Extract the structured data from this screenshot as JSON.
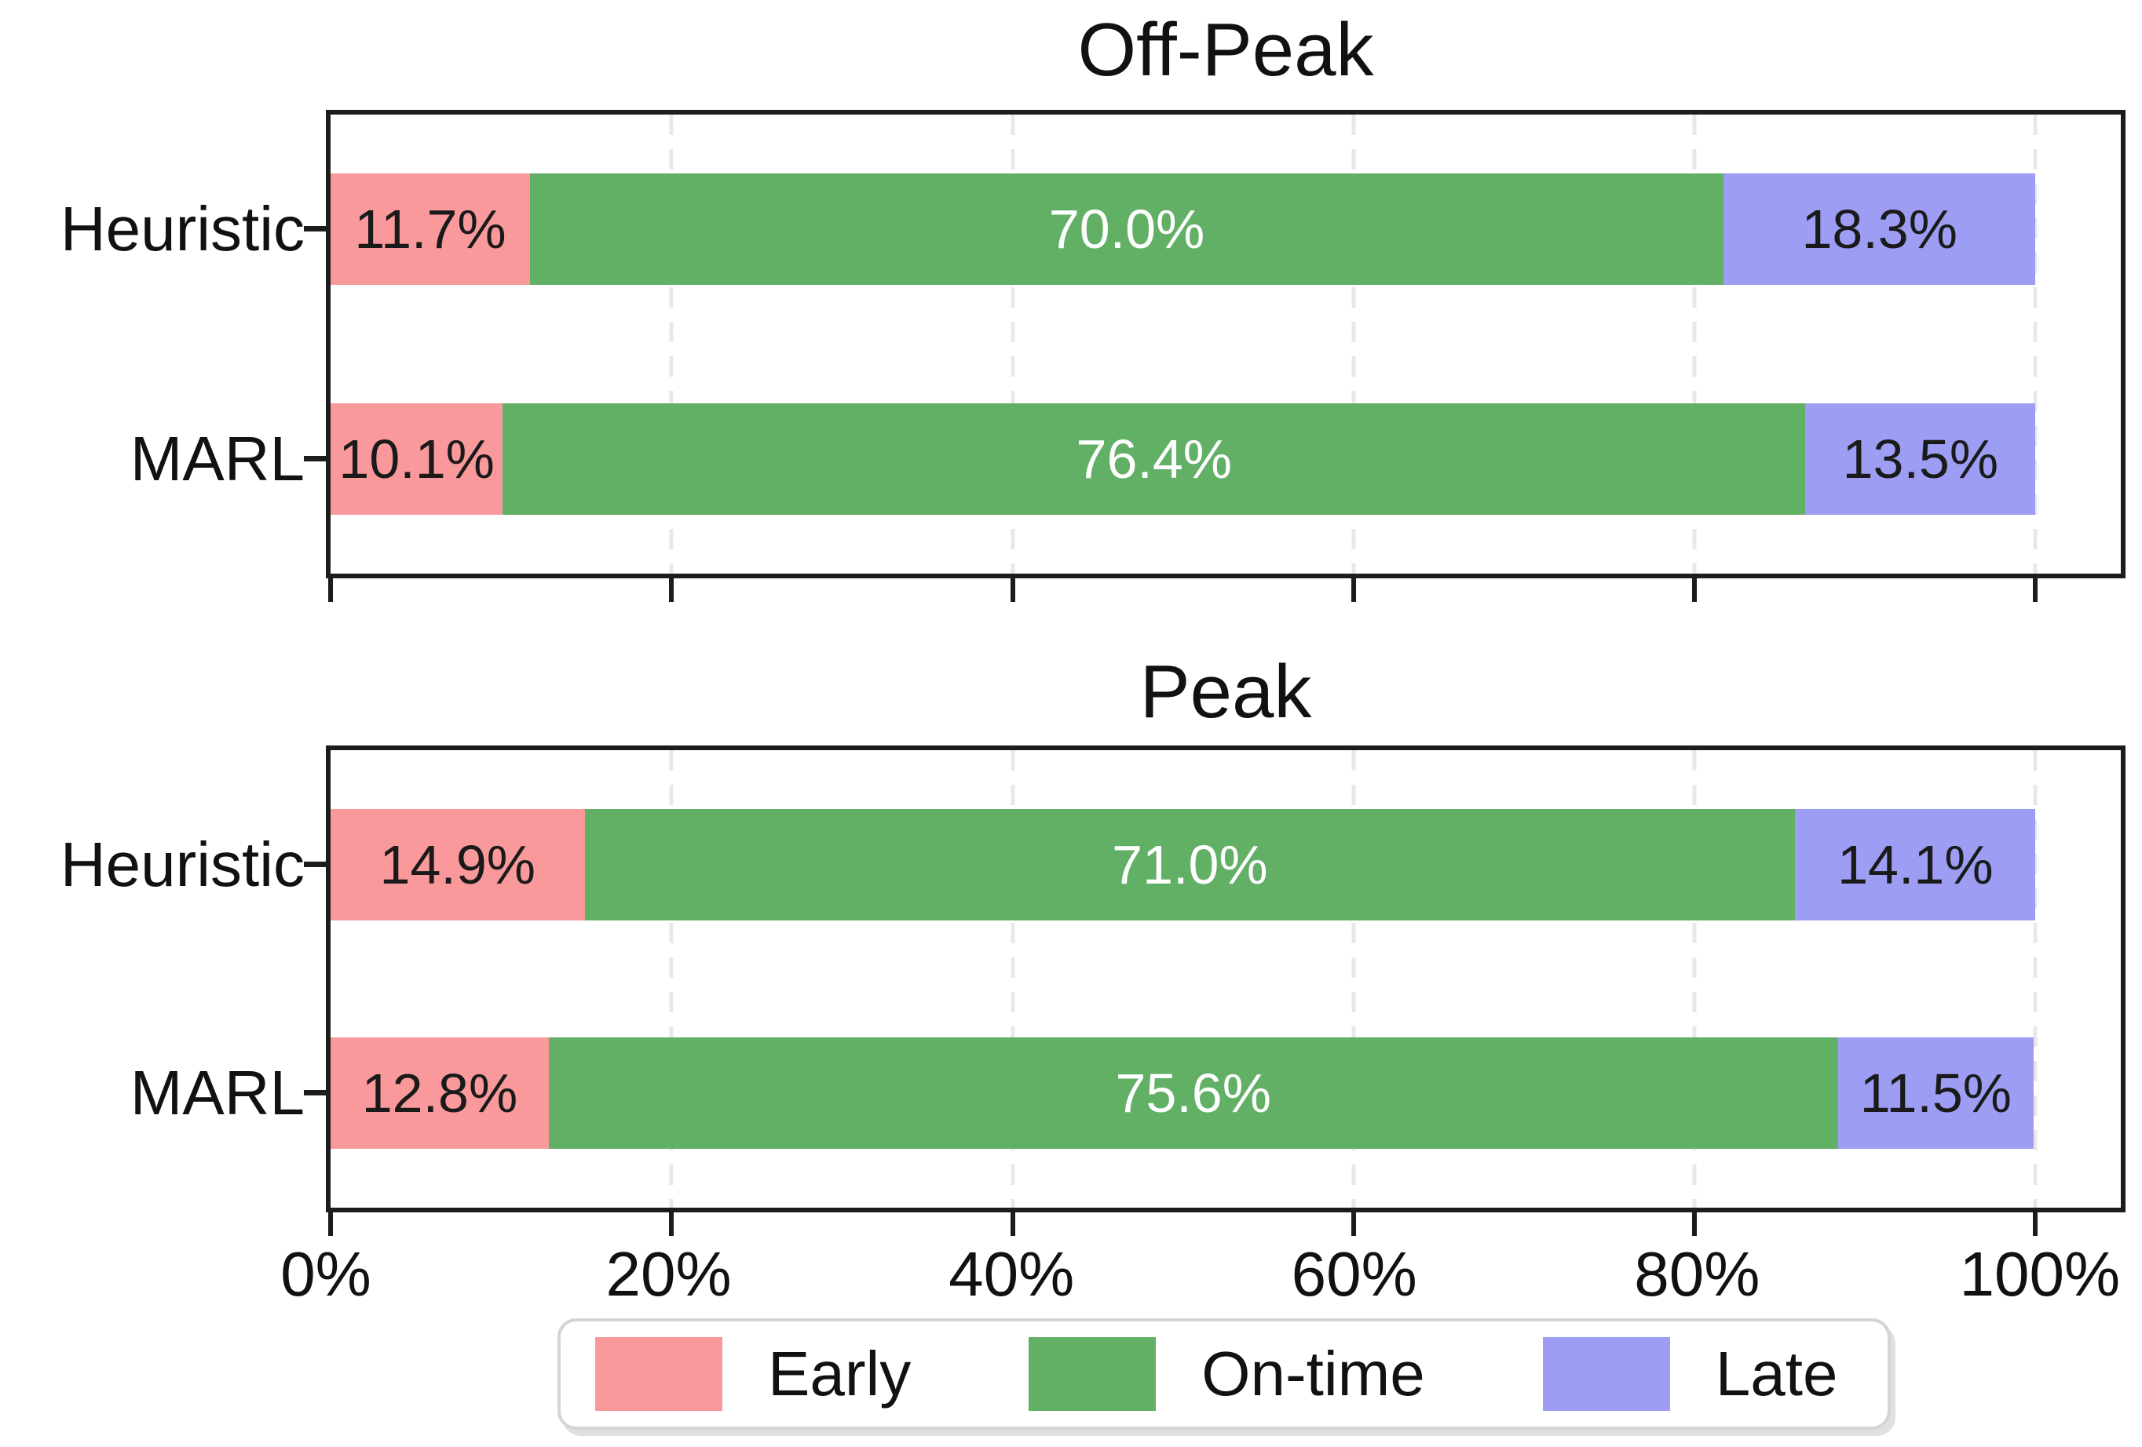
{
  "figure": {
    "background": "#ffffff",
    "spine_color": "#1c1c1c",
    "grid_color": "#e8e8e8"
  },
  "chart_data": [
    {
      "type": "bar",
      "orientation": "horizontal",
      "stacked": true,
      "title": "Off-Peak",
      "categories": [
        "Heuristic",
        "MARL"
      ],
      "series": [
        {
          "name": "Early",
          "color": "#F9999B",
          "label_color": "#1a1a1a",
          "values": [
            11.7,
            10.1
          ],
          "labels": [
            "11.7%",
            "10.1%"
          ]
        },
        {
          "name": "On-time",
          "color": "#62B066",
          "label_color": "#ffffff",
          "values": [
            70.0,
            76.4
          ],
          "labels": [
            "70.0%",
            "76.4%"
          ]
        },
        {
          "name": "Late",
          "color": "#9D9DF3",
          "label_color": "#1a1a1a",
          "values": [
            18.3,
            13.5
          ],
          "labels": [
            "18.3%",
            "13.5%"
          ]
        }
      ],
      "xlim": [
        0,
        105
      ],
      "grid": true,
      "gridline_positions": [
        20,
        40,
        60,
        80,
        100
      ],
      "xtick_values": [
        0,
        20,
        40,
        60,
        80,
        100
      ],
      "xtick_labels": [
        "0%",
        "20%",
        "40%",
        "60%",
        "80%",
        "100%"
      ],
      "xtick_labels_shown": false,
      "legend_position": "none"
    },
    {
      "type": "bar",
      "orientation": "horizontal",
      "stacked": true,
      "title": "Peak",
      "categories": [
        "Heuristic",
        "MARL"
      ],
      "series": [
        {
          "name": "Early",
          "color": "#F9999B",
          "label_color": "#1a1a1a",
          "values": [
            14.9,
            12.8
          ],
          "labels": [
            "14.9%",
            "12.8%"
          ]
        },
        {
          "name": "On-time",
          "color": "#62B066",
          "label_color": "#ffffff",
          "values": [
            71.0,
            75.6
          ],
          "labels": [
            "71.0%",
            "75.6%"
          ]
        },
        {
          "name": "Late",
          "color": "#9D9DF3",
          "label_color": "#1a1a1a",
          "values": [
            14.1,
            11.5
          ],
          "labels": [
            "14.1%",
            "11.5%"
          ]
        }
      ],
      "xlim": [
        0,
        105
      ],
      "grid": true,
      "gridline_positions": [
        20,
        40,
        60,
        80,
        100
      ],
      "xtick_values": [
        0,
        20,
        40,
        60,
        80,
        100
      ],
      "xtick_labels": [
        "0%",
        "20%",
        "40%",
        "60%",
        "80%",
        "100%"
      ],
      "xtick_labels_shown": true,
      "legend_position": "bottom"
    }
  ],
  "legend": {
    "entries": [
      {
        "label": "Early",
        "color": "#F9999B"
      },
      {
        "label": "On-time",
        "color": "#62B066"
      },
      {
        "label": "Late",
        "color": "#9D9DF3"
      }
    ]
  }
}
